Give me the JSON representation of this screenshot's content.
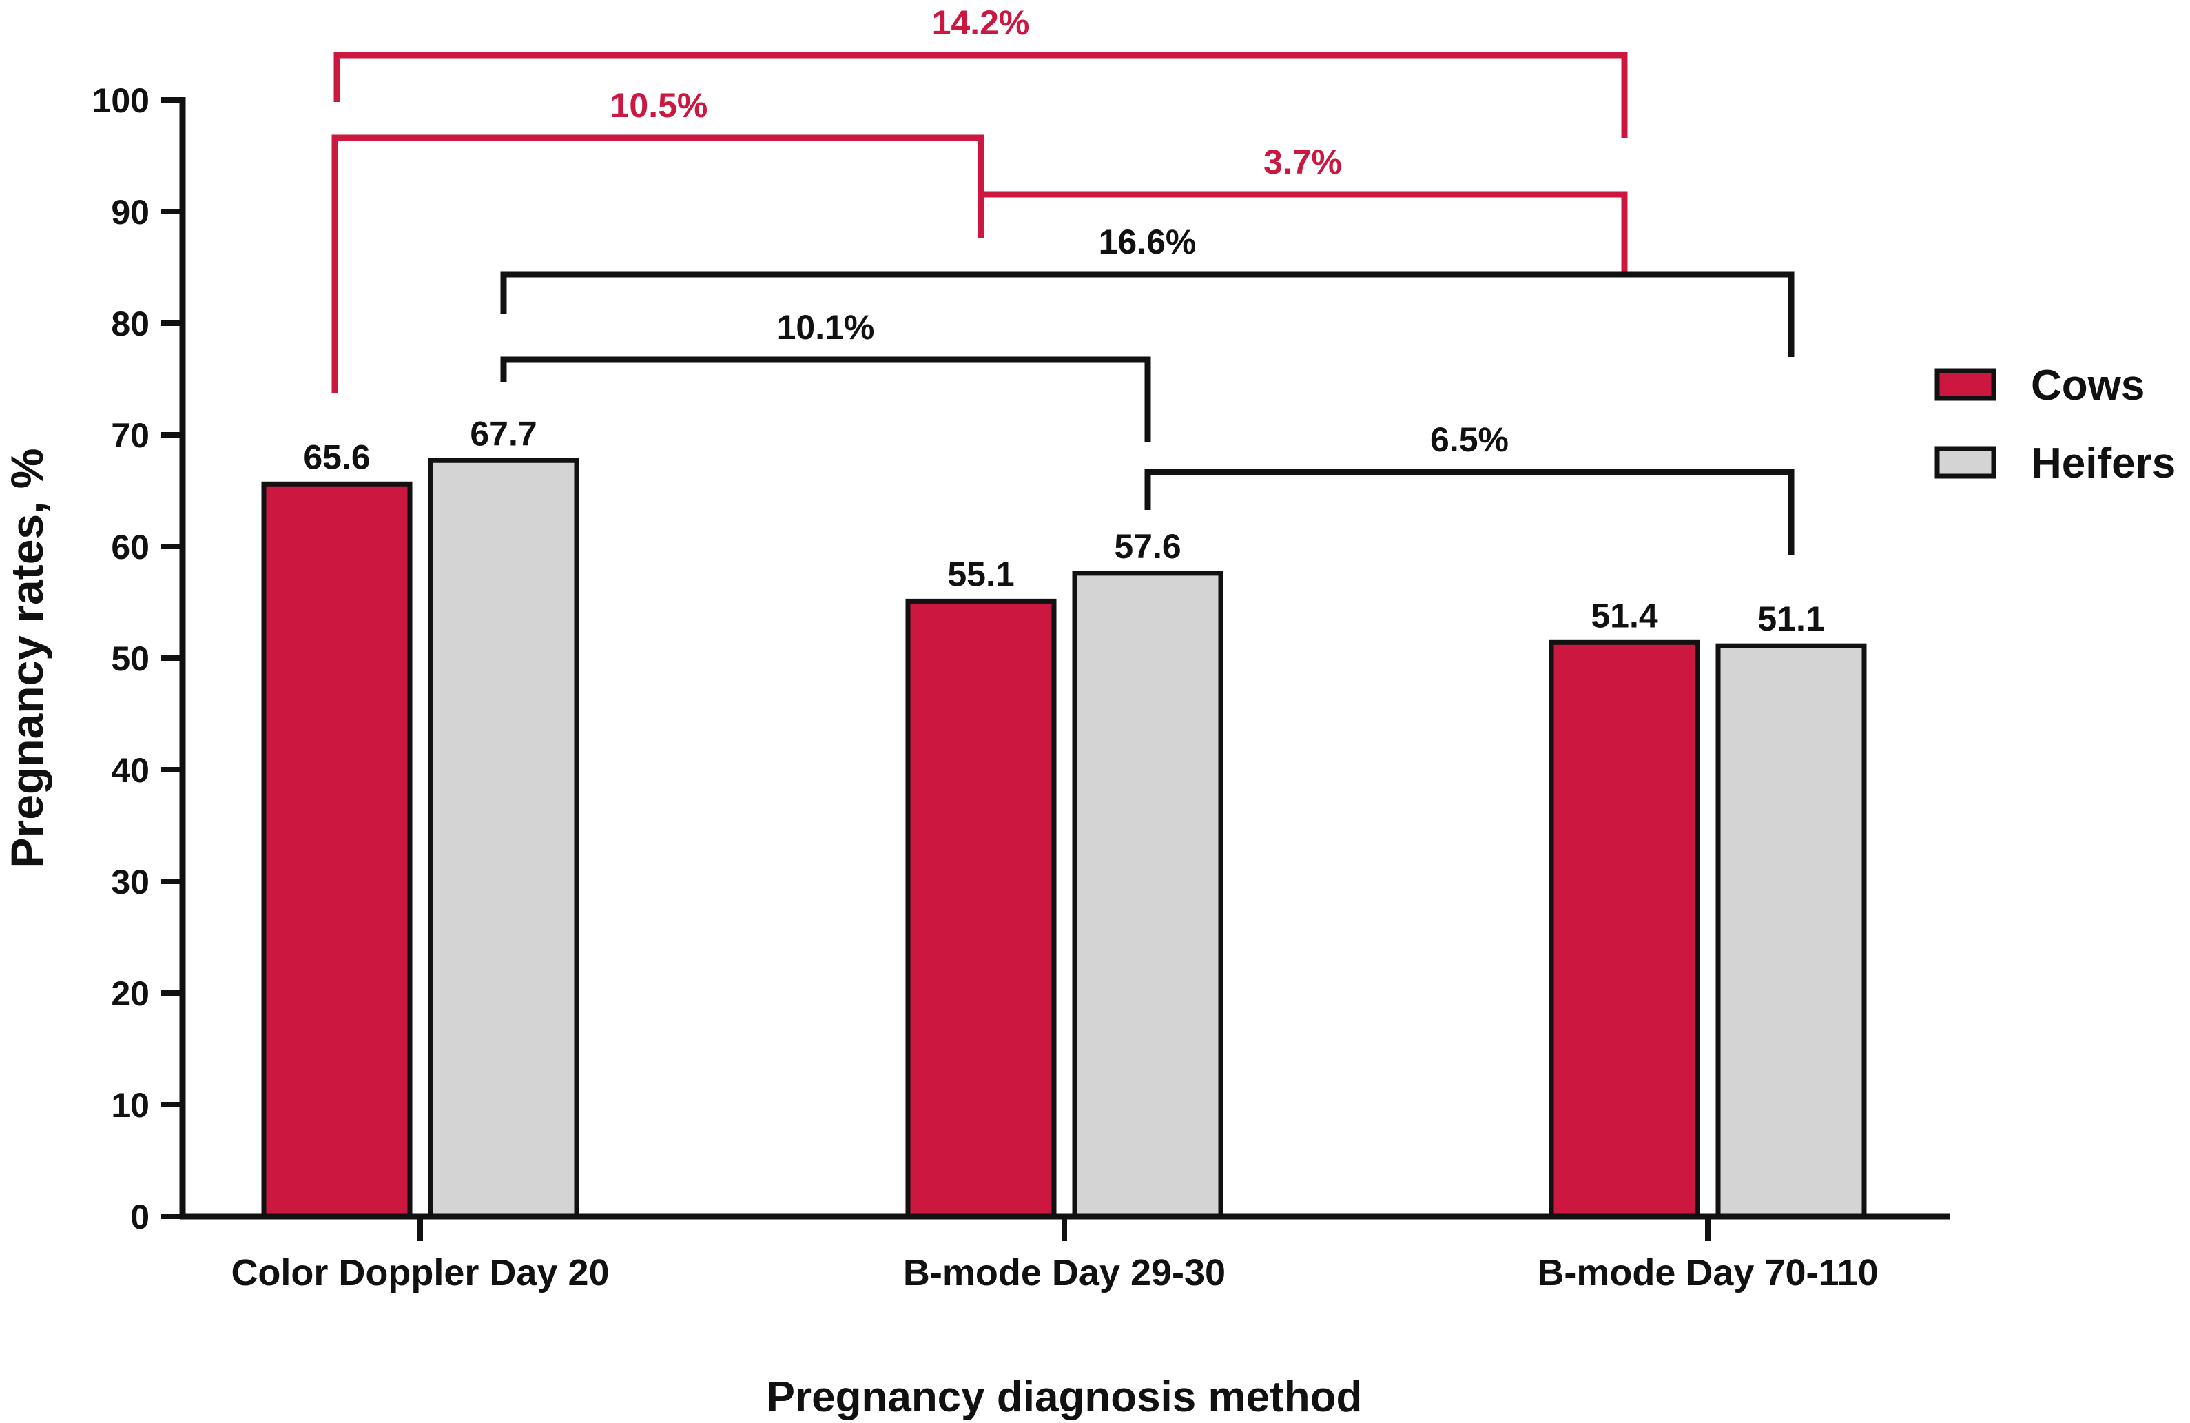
{
  "chart_data": {
    "type": "bar",
    "title": "",
    "xlabel": "Pregnancy diagnosis method",
    "ylabel": "Pregnancy rates, %",
    "ylim": [
      0,
      100
    ],
    "yticks": [
      0,
      10,
      20,
      30,
      40,
      50,
      60,
      70,
      80,
      90,
      100
    ],
    "categories": [
      "Color Doppler Day 20",
      "B-mode Day 29-30",
      "B-mode Day 70-110"
    ],
    "series": [
      {
        "name": "Cows",
        "color": "#CC1740",
        "values": [
          65.6,
          55.1,
          51.4
        ],
        "labels": [
          "65.6",
          "55.1",
          "51.4"
        ]
      },
      {
        "name": "Heifers",
        "color": "#D4D4D4",
        "values": [
          67.7,
          57.6,
          51.1
        ],
        "labels": [
          "67.7",
          "57.6",
          "51.1"
        ]
      }
    ],
    "legend": {
      "position": "right",
      "entries": [
        "Cows",
        "Heifers"
      ]
    },
    "comparisons": [
      {
        "series": "Cows",
        "from_category": 0,
        "to_category": 2,
        "label": "14.2%",
        "color": "#CC1740"
      },
      {
        "series": "Cows",
        "from_category": 0,
        "to_category": 1,
        "label": "10.5%",
        "color": "#CC1740"
      },
      {
        "series": "Cows",
        "from_category": 1,
        "to_category": 2,
        "label": "3.7%",
        "color": "#CC1740"
      },
      {
        "series": "Heifers",
        "from_category": 0,
        "to_category": 2,
        "label": "16.6%",
        "color": "#111111"
      },
      {
        "series": "Heifers",
        "from_category": 0,
        "to_category": 1,
        "label": "10.1%",
        "color": "#111111"
      },
      {
        "series": "Heifers",
        "from_category": 1,
        "to_category": 2,
        "label": "6.5%",
        "color": "#111111"
      }
    ]
  }
}
